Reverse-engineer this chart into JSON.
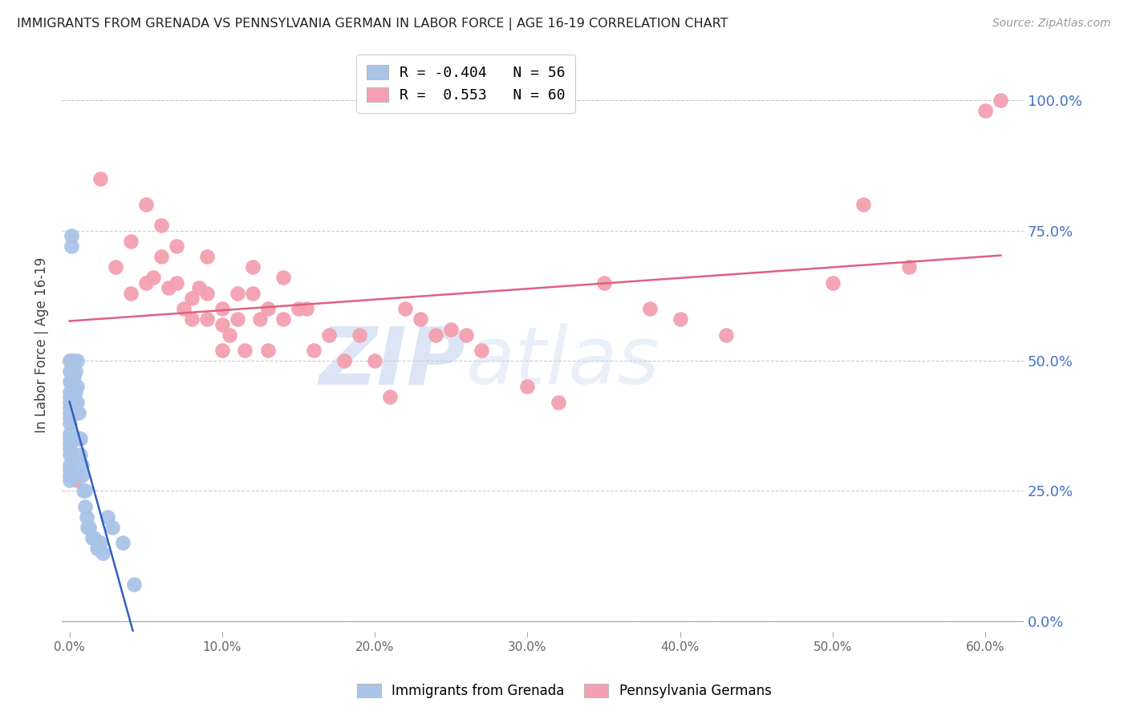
{
  "title": "IMMIGRANTS FROM GRENADA VS PENNSYLVANIA GERMAN IN LABOR FORCE | AGE 16-19 CORRELATION CHART",
  "source_text": "Source: ZipAtlas.com",
  "ylabel": "In Labor Force | Age 16-19",
  "xlabel_ticks": [
    "0.0%",
    "10.0%",
    "20.0%",
    "30.0%",
    "40.0%",
    "50.0%",
    "60.0%"
  ],
  "xlabel_vals": [
    0.0,
    0.1,
    0.2,
    0.3,
    0.4,
    0.5,
    0.6
  ],
  "ylabel_ticks": [
    "0.0%",
    "25.0%",
    "50.0%",
    "75.0%",
    "100.0%"
  ],
  "ylabel_vals": [
    0.0,
    0.25,
    0.5,
    0.75,
    1.0
  ],
  "xlim": [
    -0.005,
    0.625
  ],
  "ylim": [
    -0.02,
    1.08
  ],
  "series1_label": "Immigrants from Grenada",
  "series2_label": "Pennsylvania Germans",
  "series1_color": "#aac4e8",
  "series2_color": "#f4a0b0",
  "series1_line_color": "#3060c0",
  "series2_line_color": "#e06080",
  "legend_line1": "R = -0.404   N = 56",
  "legend_line2": "R =  0.553   N = 60",
  "watermark_zip": "ZIP",
  "watermark_atlas": "atlas",
  "series1_x": [
    0.0,
    0.0,
    0.0,
    0.0,
    0.0,
    0.0,
    0.0,
    0.0,
    0.0,
    0.0,
    0.0,
    0.0,
    0.0,
    0.0,
    0.0,
    0.0,
    0.0,
    0.0,
    0.0,
    0.001,
    0.001,
    0.001,
    0.001,
    0.002,
    0.002,
    0.002,
    0.003,
    0.003,
    0.003,
    0.004,
    0.004,
    0.004,
    0.005,
    0.005,
    0.005,
    0.006,
    0.006,
    0.007,
    0.007,
    0.008,
    0.008,
    0.009,
    0.01,
    0.01,
    0.011,
    0.012,
    0.013,
    0.015,
    0.016,
    0.018,
    0.02,
    0.022,
    0.025,
    0.028,
    0.035,
    0.042
  ],
  "series1_y": [
    0.5,
    0.48,
    0.46,
    0.44,
    0.43,
    0.42,
    0.41,
    0.4,
    0.39,
    0.38,
    0.36,
    0.35,
    0.34,
    0.33,
    0.32,
    0.3,
    0.29,
    0.28,
    0.27,
    0.74,
    0.72,
    0.5,
    0.48,
    0.46,
    0.43,
    0.42,
    0.5,
    0.47,
    0.43,
    0.48,
    0.44,
    0.42,
    0.5,
    0.45,
    0.42,
    0.4,
    0.35,
    0.35,
    0.32,
    0.3,
    0.28,
    0.25,
    0.25,
    0.22,
    0.2,
    0.18,
    0.18,
    0.16,
    0.16,
    0.14,
    0.15,
    0.13,
    0.2,
    0.18,
    0.15,
    0.07
  ],
  "series2_x": [
    0.0,
    0.005,
    0.02,
    0.03,
    0.04,
    0.04,
    0.05,
    0.05,
    0.055,
    0.06,
    0.06,
    0.065,
    0.07,
    0.07,
    0.075,
    0.08,
    0.08,
    0.085,
    0.09,
    0.09,
    0.09,
    0.1,
    0.1,
    0.1,
    0.105,
    0.11,
    0.11,
    0.115,
    0.12,
    0.12,
    0.125,
    0.13,
    0.13,
    0.14,
    0.14,
    0.15,
    0.155,
    0.16,
    0.17,
    0.18,
    0.19,
    0.2,
    0.21,
    0.22,
    0.23,
    0.24,
    0.25,
    0.26,
    0.27,
    0.3,
    0.32,
    0.35,
    0.38,
    0.4,
    0.43,
    0.5,
    0.52,
    0.55,
    0.6,
    0.61
  ],
  "series2_y": [
    0.5,
    0.27,
    0.85,
    0.68,
    0.73,
    0.63,
    0.8,
    0.65,
    0.66,
    0.76,
    0.7,
    0.64,
    0.72,
    0.65,
    0.6,
    0.62,
    0.58,
    0.64,
    0.7,
    0.63,
    0.58,
    0.6,
    0.57,
    0.52,
    0.55,
    0.63,
    0.58,
    0.52,
    0.68,
    0.63,
    0.58,
    0.6,
    0.52,
    0.66,
    0.58,
    0.6,
    0.6,
    0.52,
    0.55,
    0.5,
    0.55,
    0.5,
    0.43,
    0.6,
    0.58,
    0.55,
    0.56,
    0.55,
    0.52,
    0.45,
    0.42,
    0.65,
    0.6,
    0.58,
    0.55,
    0.65,
    0.8,
    0.68,
    0.98,
    1.0
  ]
}
